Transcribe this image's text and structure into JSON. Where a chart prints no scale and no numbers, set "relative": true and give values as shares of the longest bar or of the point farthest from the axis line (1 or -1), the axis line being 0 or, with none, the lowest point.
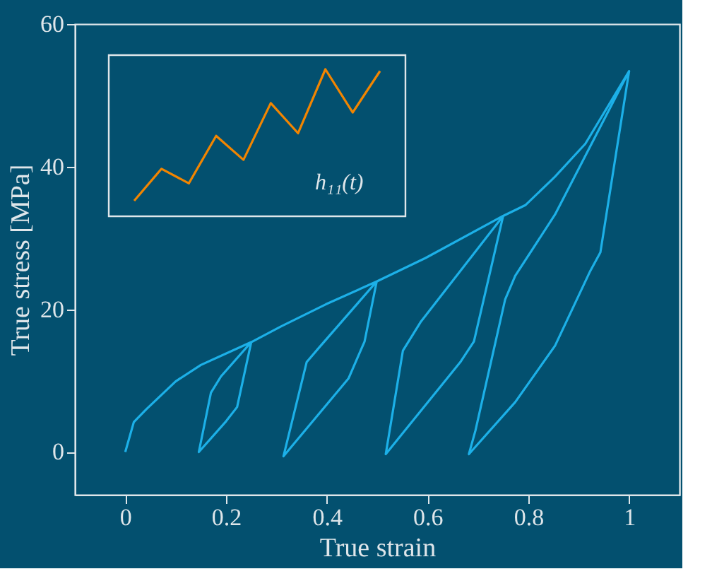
{
  "chart_data": [
    {
      "type": "line",
      "xlabel": "True strain",
      "ylabel": "True stress [MPa]",
      "xlim": [
        -0.1,
        1.1
      ],
      "ylim": [
        -6,
        60
      ],
      "xticks": [
        0,
        0.2,
        0.4,
        0.6,
        0.8,
        1
      ],
      "yticks": [
        0,
        20,
        40,
        60
      ],
      "grid": false,
      "series": [
        {
          "color": "#1cb0e8",
          "x": [
            0,
            0.017,
            0.042,
            0.1,
            0.15,
            0.25,
            0.222,
            0.2,
            0.146,
            0.17,
            0.19,
            0.25,
            0.309,
            0.398,
            0.499,
            0.475,
            0.443,
            0.314,
            0.36,
            0.383,
            0.499,
            0.596,
            0.75,
            0.692,
            0.665,
            0.517,
            0.551,
            0.586,
            0.75,
            0.794,
            0.853,
            0.913,
            1,
            0.943,
            0.923,
            0.853,
            0.774,
            0.682,
            0.695,
            0.754,
            0.774,
            0.853,
            1
          ],
          "values": [
            0,
            4.2,
            6,
            9.9,
            12.2,
            15.4,
            6.3,
            4.3,
            0,
            8.3,
            10.6,
            15.4,
            17.6,
            20.7,
            23.9,
            15.5,
            10.3,
            -0.6,
            12.6,
            14.5,
            23.9,
            27.2,
            33.1,
            15.5,
            12.6,
            -0.3,
            14.2,
            18.2,
            33.1,
            34.6,
            38.6,
            43.2,
            53.4,
            28,
            25.4,
            14.9,
            7,
            -0.3,
            3,
            21.4,
            24.7,
            33.3,
            53.4
          ]
        }
      ]
    },
    {
      "type": "line",
      "relative": true,
      "categories": [
        null,
        null,
        null,
        null,
        null,
        null,
        null,
        null,
        null,
        null
      ],
      "series": [
        {
          "name": "h₁₁(t)",
          "color": "#f28500",
          "values": [
            0.106,
            0.323,
            0.224,
            0.547,
            0.384,
            0.77,
            0.565,
            1,
            0.706,
            0.988
          ]
        }
      ]
    }
  ]
}
